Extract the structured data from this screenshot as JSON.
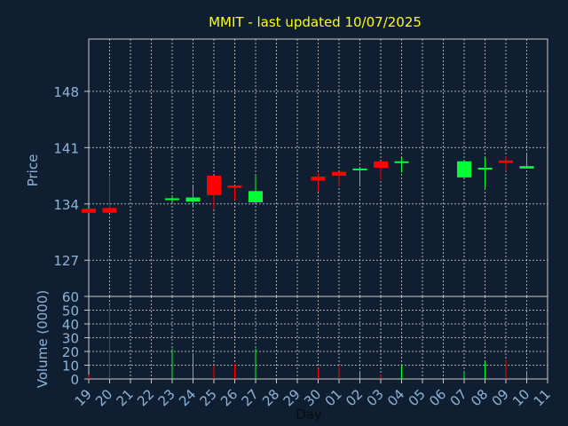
{
  "chart_data": {
    "type": "candlestick",
    "title": "MMIT - last updated 10/07/2025",
    "xlabel": "Day",
    "ylabel_price": "Price",
    "ylabel_volume": "Volume (0000)",
    "x_ticks": [
      "19",
      "20",
      "21",
      "22",
      "23",
      "24",
      "25",
      "26",
      "27",
      "28",
      "29",
      "30",
      "01",
      "02",
      "03",
      "04",
      "05",
      "06",
      "07",
      "08",
      "09",
      "10",
      "11"
    ],
    "price_ticks": [
      127,
      134,
      141,
      148
    ],
    "price_ylim": [
      122.5,
      154.5
    ],
    "volume_ticks": [
      0,
      10,
      20,
      30,
      40,
      50,
      60
    ],
    "volume_ylim": [
      0,
      60
    ],
    "grid": true,
    "colors": {
      "background": "#0f1f31",
      "axes": "#c8c8c8",
      "grid": "#c8c8c8",
      "title": "#ffff00",
      "label": "#8fb4d8",
      "up": "#00ff33",
      "down": "#ff0000"
    },
    "candles": [
      {
        "day": "19",
        "open": 133.4,
        "close": 132.9,
        "high": 133.4,
        "low": 132.9,
        "volume": 3
      },
      {
        "day": "20",
        "open": 133.5,
        "close": 132.9,
        "high": 137.6,
        "low": 132.9,
        "volume": 54
      },
      {
        "day": "23",
        "open": 134.5,
        "close": 134.7,
        "high": 134.9,
        "low": 134.2,
        "volume": 22
      },
      {
        "day": "24",
        "open": 134.3,
        "close": 134.8,
        "high": 136.2,
        "low": 133.7,
        "volume": 18
      },
      {
        "day": "25",
        "open": 137.5,
        "close": 135.1,
        "high": 137.5,
        "low": 133.3,
        "volume": 10
      },
      {
        "day": "26",
        "open": 136.3,
        "close": 136.0,
        "high": 136.3,
        "low": 134.5,
        "volume": 11
      },
      {
        "day": "27",
        "open": 134.2,
        "close": 135.6,
        "high": 137.5,
        "low": 134.2,
        "volume": 22
      },
      {
        "day": "30",
        "open": 137.4,
        "close": 136.9,
        "high": 137.8,
        "low": 135.5,
        "volume": 8
      },
      {
        "day": "01",
        "open": 138.0,
        "close": 137.5,
        "high": 138.0,
        "low": 136.2,
        "volume": 10
      },
      {
        "day": "02",
        "open": 138.3,
        "close": 138.4,
        "high": 138.4,
        "low": 136.3,
        "volume": 5
      },
      {
        "day": "03",
        "open": 139.3,
        "close": 138.5,
        "high": 139.3,
        "low": 137.0,
        "volume": 3
      },
      {
        "day": "04",
        "open": 139.1,
        "close": 139.3,
        "high": 139.8,
        "low": 137.9,
        "volume": 10
      },
      {
        "day": "07",
        "open": 137.3,
        "close": 139.3,
        "high": 139.3,
        "low": 137.3,
        "volume": 5
      },
      {
        "day": "08",
        "open": 138.3,
        "close": 138.5,
        "high": 139.8,
        "low": 136.0,
        "volume": 13
      },
      {
        "day": "09",
        "open": 139.4,
        "close": 139.1,
        "high": 139.9,
        "low": 138.1,
        "volume": 14
      },
      {
        "day": "10",
        "open": 138.4,
        "close": 138.7,
        "high": 140.2,
        "low": 138.4,
        "volume": 6
      }
    ]
  }
}
